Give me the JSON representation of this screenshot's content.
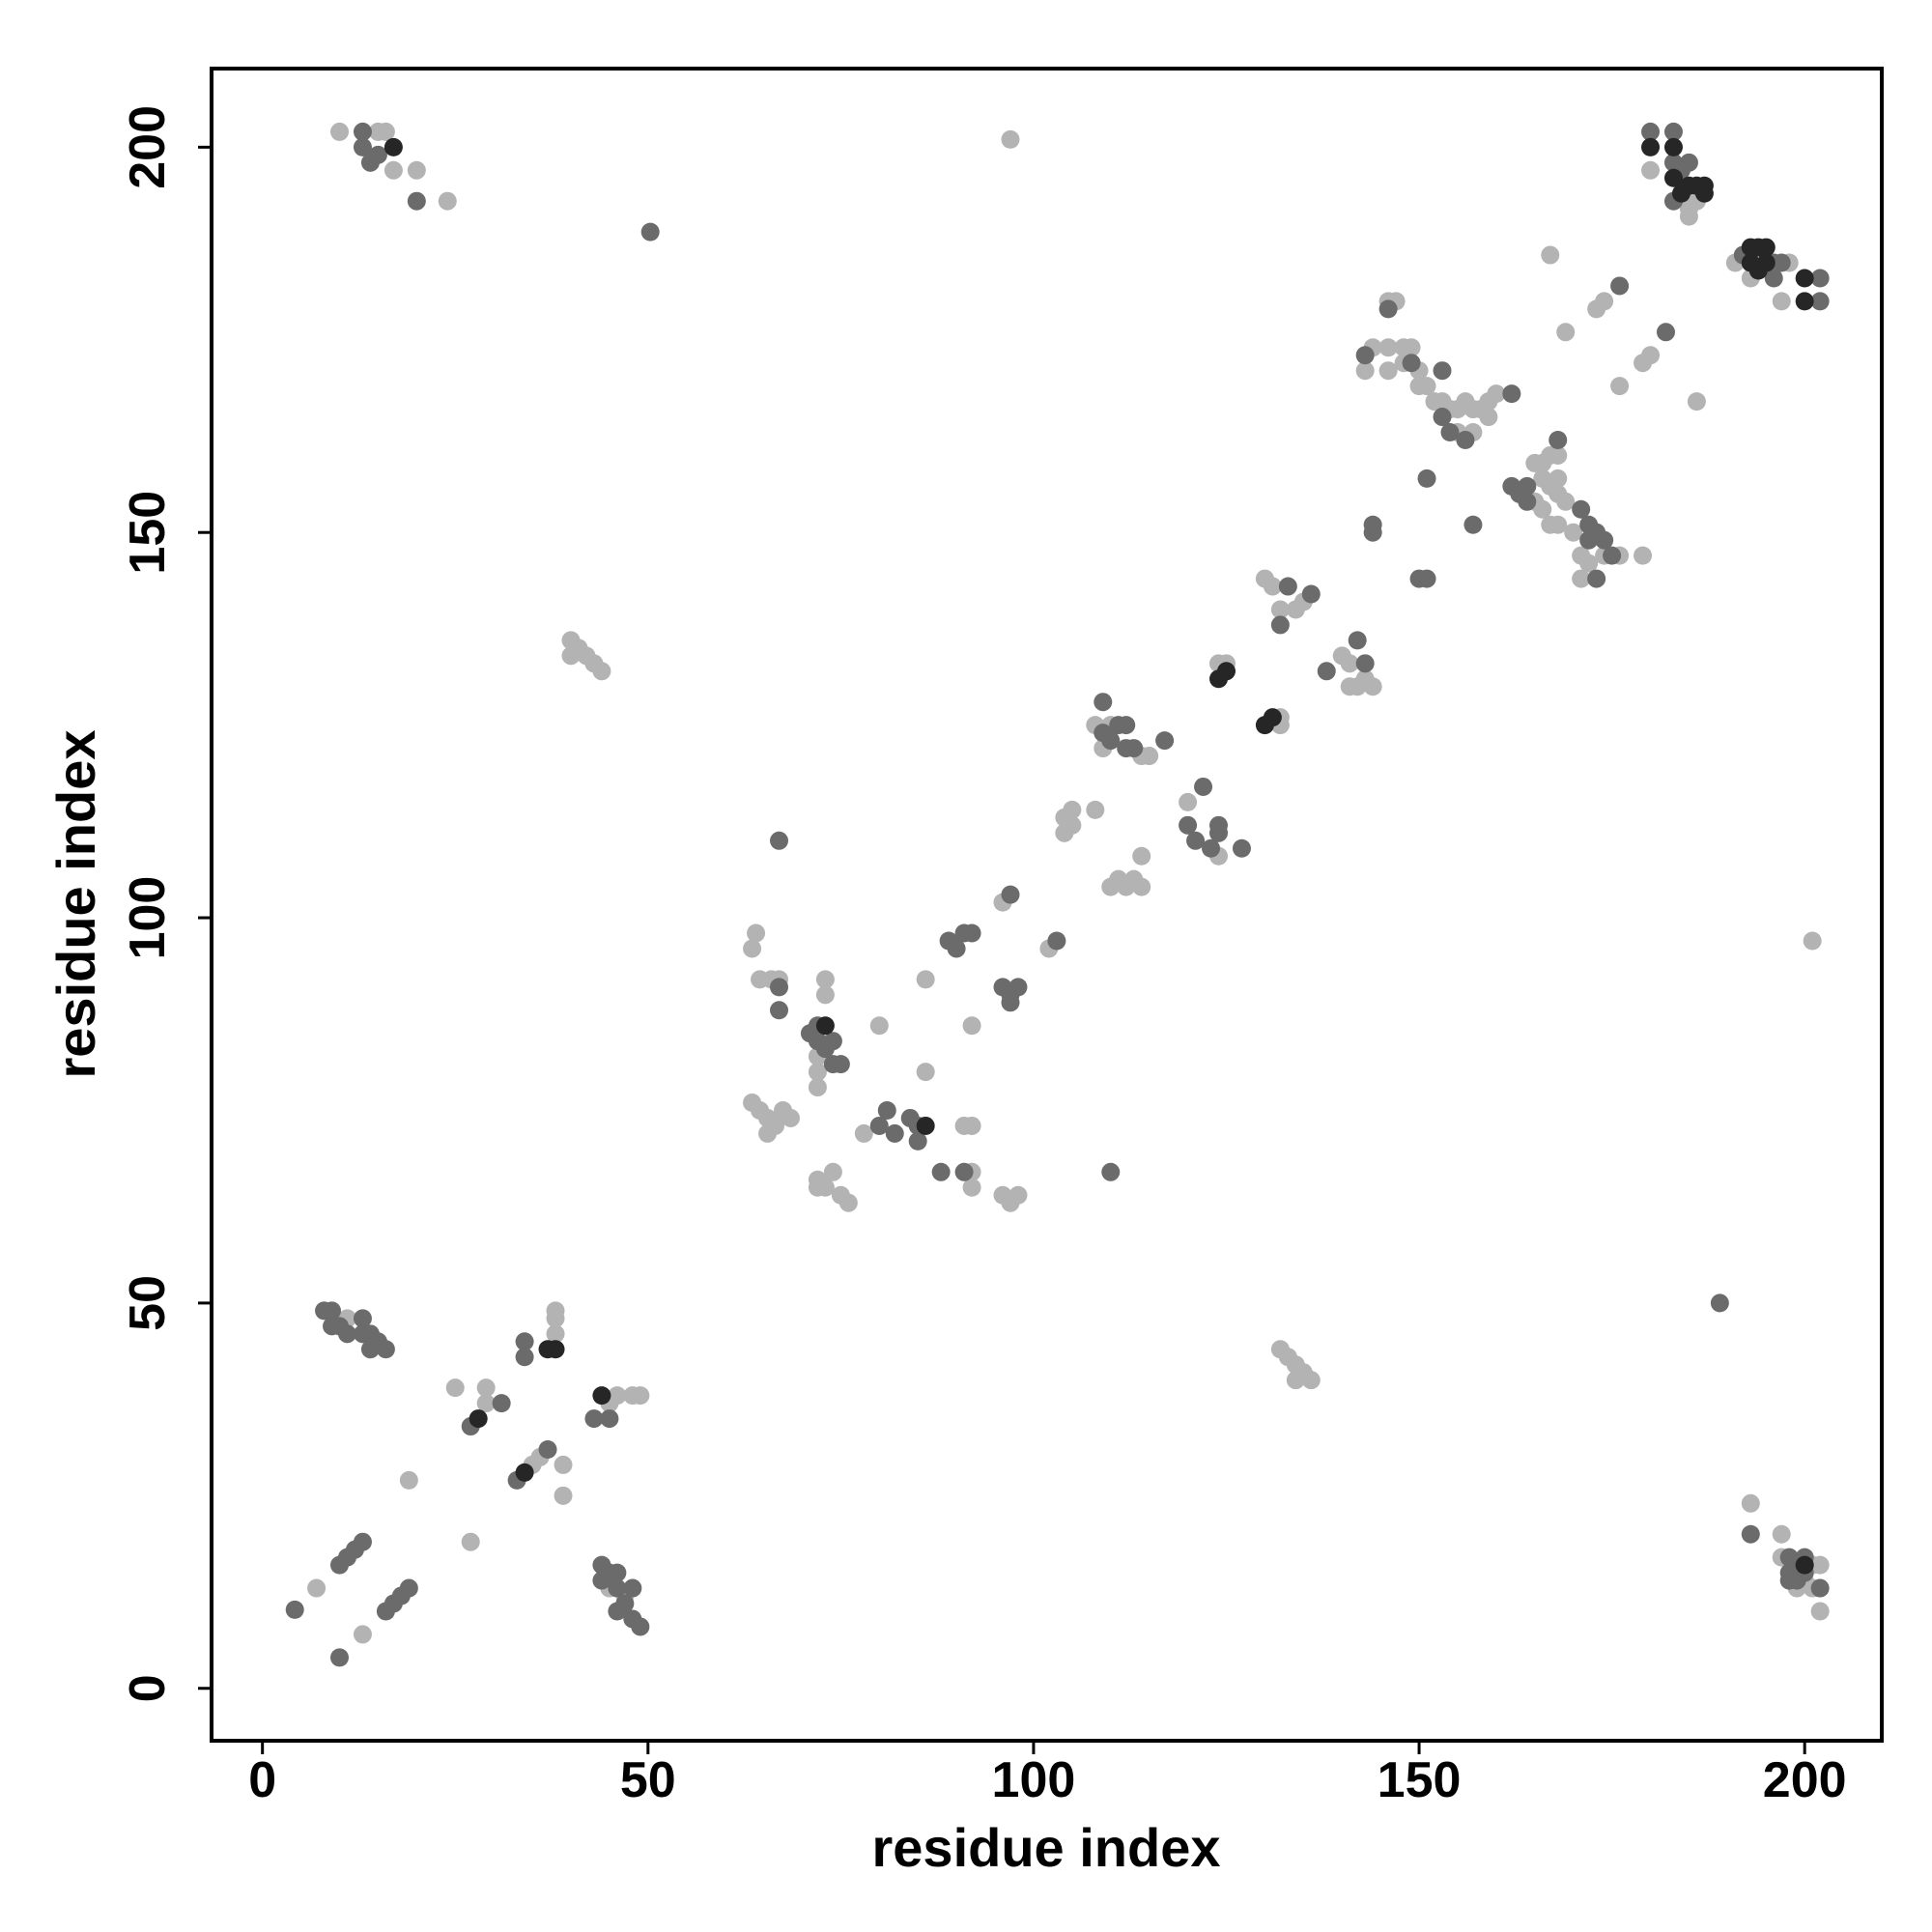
{
  "chart_data": {
    "type": "scatter",
    "x_label": "residue index",
    "y_label": "residue index",
    "xlim": [
      -6.6,
      210
    ],
    "ylim": [
      -6.8,
      210.2
    ],
    "xticks": [
      0,
      50,
      100,
      150,
      200
    ],
    "yticks": [
      0,
      50,
      100,
      150,
      200
    ],
    "grid": false,
    "series": [
      {
        "color": "#b3b3b3",
        "x": [
          10,
          15,
          16,
          17,
          20,
          24,
          7,
          13,
          19,
          27,
          25,
          29,
          29,
          35,
          36,
          39,
          39,
          38,
          38,
          38,
          45,
          46,
          48,
          49,
          11,
          45,
          47,
          40,
          41,
          42,
          43,
          44,
          40,
          132,
          133,
          134,
          135,
          136,
          134,
          97,
          201,
          63.5,
          64,
          64.5,
          66,
          67,
          72,
          72,
          72,
          73,
          73,
          63.5,
          64.5,
          65.5,
          66.5,
          67.5,
          68.5,
          65.5,
          72,
          73,
          74,
          75,
          76,
          72,
          78,
          80,
          86,
          86,
          91,
          92,
          92,
          92,
          92,
          96,
          97,
          98,
          96,
          102,
          104,
          104,
          105,
          105,
          108,
          110,
          111,
          112,
          113,
          114,
          114,
          108,
          114,
          115,
          109,
          110,
          120,
          124,
          124,
          125,
          132,
          132,
          130,
          131,
          132,
          135,
          134,
          140,
          141,
          143,
          144,
          142,
          141,
          144,
          146,
          148,
          149,
          146,
          148,
          150,
          150,
          151,
          152,
          153,
          154,
          155,
          156,
          157,
          158,
          159,
          160,
          155,
          157,
          159,
          146,
          147,
          143,
          165,
          166,
          167,
          168,
          166,
          167,
          168,
          169,
          166,
          168,
          170,
          165,
          168,
          167,
          171,
          172,
          174,
          171,
          176,
          179,
          167,
          169,
          173,
          174,
          176,
          179,
          180,
          186,
          180,
          185,
          186,
          185,
          191,
          198,
          193,
          197,
          193,
          197,
          197,
          201,
          202,
          200,
          201,
          199,
          202
        ],
        "y": [
          202,
          202,
          202,
          197,
          197,
          193,
          13,
          7,
          27,
          19,
          39,
          37,
          39,
          29,
          30,
          29,
          25,
          46,
          49,
          48,
          37,
          38,
          38,
          38,
          48,
          13,
          12,
          136,
          135,
          134,
          133,
          132,
          134,
          44,
          43,
          42,
          41,
          40,
          40,
          201,
          97,
          96,
          98,
          92,
          92,
          92,
          82,
          80,
          78,
          92,
          90,
          76,
          75,
          74,
          73,
          75,
          74,
          72,
          66,
          65,
          67,
          64,
          63,
          65,
          72,
          86,
          92,
          80,
          73,
          73,
          67,
          65,
          86,
          64,
          63,
          64,
          102,
          96,
          113,
          111,
          114,
          112,
          114,
          104,
          105,
          104,
          105,
          104,
          108,
          125,
          121,
          121,
          122,
          125,
          115,
          108,
          133,
          133,
          126,
          125,
          144,
          143,
          140,
          141,
          140,
          134,
          133,
          131,
          130,
          130,
          130,
          174,
          174,
          174,
          174,
          171,
          172,
          171,
          169,
          169,
          167,
          167,
          166,
          166,
          167,
          166,
          166,
          167,
          168,
          163,
          163,
          165,
          180,
          180,
          171,
          159,
          159,
          160,
          160,
          157,
          156,
          155,
          154,
          153,
          151,
          150,
          154,
          157,
          151,
          147,
          146,
          147,
          144,
          147,
          147,
          186,
          176,
          179,
          180,
          169,
          172,
          173,
          167,
          197,
          192,
          193,
          191,
          185,
          185,
          183,
          180,
          24,
          20,
          17,
          16,
          16,
          14,
          13,
          13,
          10
        ]
      },
      {
        "color": "#6b6b6b",
        "x": [
          13,
          13,
          14,
          15,
          20,
          4.2,
          10,
          10,
          11,
          12,
          13,
          16,
          17,
          18,
          19,
          27,
          31,
          33,
          37,
          34,
          34,
          43,
          45,
          8,
          9,
          9,
          10,
          11,
          13,
          13,
          14,
          14,
          15,
          16,
          44,
          44,
          45,
          46,
          46,
          47,
          48,
          46,
          48,
          49,
          50.3,
          189,
          110,
          67,
          67,
          67,
          72,
          71,
          72,
          73,
          74,
          74,
          75,
          80,
          81,
          82,
          84,
          85,
          85,
          88,
          91,
          89,
          90,
          91,
          92,
          96,
          97,
          98,
          97,
          97,
          103,
          109,
          109,
          110,
          111,
          112,
          112,
          113,
          117,
          120,
          122,
          121,
          123,
          124,
          124,
          127,
          133,
          136,
          132,
          138,
          142,
          143,
          144,
          144,
          150,
          151,
          151,
          157,
          143,
          149,
          153,
          153,
          154,
          156,
          162,
          146,
          162,
          163,
          164,
          164,
          168,
          171,
          172,
          173,
          174,
          173,
          172,
          175,
          176,
          182,
          180,
          183,
          183,
          184,
          185,
          183,
          192,
          196,
          197,
          196,
          202,
          202,
          193,
          198,
          199,
          200,
          198,
          199,
          198,
          202,
          200
        ],
        "y": [
          202,
          200,
          198,
          199,
          193,
          10.2,
          4,
          16,
          17,
          18,
          19,
          10,
          11,
          12,
          13,
          34,
          37,
          27,
          31,
          45,
          43,
          35,
          35,
          49,
          49,
          47,
          47,
          46,
          48,
          46,
          46,
          44,
          45,
          44,
          16,
          14,
          15,
          15,
          13,
          11,
          13,
          10,
          9,
          8,
          189,
          50,
          67,
          110,
          91,
          88,
          86,
          85,
          84,
          83,
          84,
          81,
          81,
          73,
          75,
          72,
          74,
          73,
          71,
          67,
          67,
          97,
          96,
          98,
          98,
          91,
          90,
          91,
          89,
          103,
          97,
          128,
          124,
          123,
          125,
          125,
          122,
          122,
          123,
          112,
          117,
          110,
          109,
          112,
          111,
          109,
          143,
          142,
          138,
          132,
          136,
          133,
          150,
          151,
          144,
          144,
          157,
          151,
          173,
          172,
          171,
          165,
          163,
          162,
          168,
          179,
          156,
          155,
          154,
          156,
          162,
          153,
          151,
          150,
          149,
          144,
          149,
          147,
          182,
          176,
          202,
          202,
          198,
          197,
          198,
          193,
          186,
          185,
          185,
          183,
          183,
          180,
          20,
          17,
          16,
          17,
          15,
          14,
          14,
          13,
          15
        ]
      },
      {
        "color": "#262626",
        "x": [
          17,
          28,
          34,
          37,
          38,
          44,
          73,
          86,
          124,
          125,
          130,
          131,
          180,
          183,
          183,
          184,
          185,
          186,
          187,
          187,
          193,
          194,
          195,
          193,
          194,
          195,
          200,
          200,
          200
        ],
        "y": [
          200,
          35,
          28,
          44,
          44,
          38,
          86,
          73,
          131,
          132,
          125,
          126,
          200,
          200,
          196,
          194,
          195,
          195,
          195,
          194,
          187,
          187,
          187,
          185,
          184,
          185,
          183,
          180,
          16
        ]
      }
    ]
  }
}
